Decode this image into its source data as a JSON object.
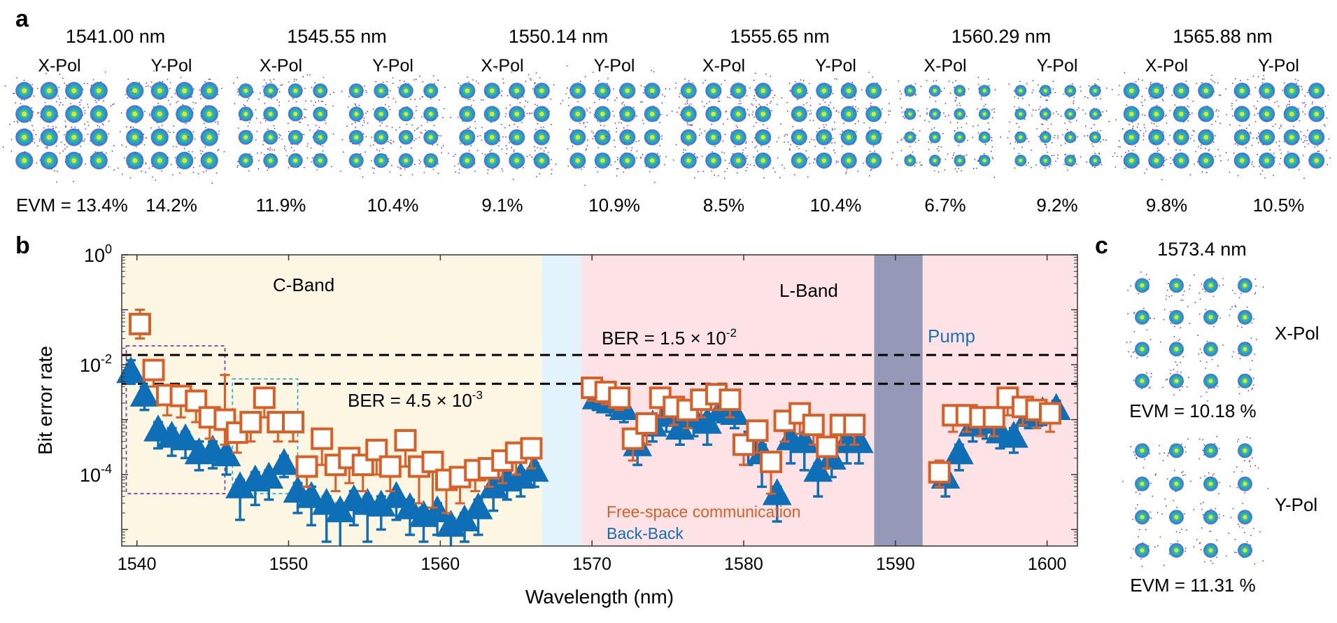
{
  "panel_labels": {
    "a": "a",
    "b": "b",
    "c": "c"
  },
  "panel_a": {
    "groups": [
      {
        "wavelength": "1541.00 nm",
        "x_label": "X-Pol",
        "y_label": "Y-Pol",
        "evm_x": "EVM = 13.4%",
        "evm_y": "14.2%"
      },
      {
        "wavelength": "1545.55 nm",
        "x_label": "X-Pol",
        "y_label": "Y-Pol",
        "evm_x": "11.9%",
        "evm_y": "10.4%"
      },
      {
        "wavelength": "1550.14 nm",
        "x_label": "X-Pol",
        "y_label": "Y-Pol",
        "evm_x": "9.1%",
        "evm_y": "10.9%"
      },
      {
        "wavelength": "1555.65 nm",
        "x_label": "X-Pol",
        "y_label": "Y-Pol",
        "evm_x": "8.5%",
        "evm_y": "10.4%"
      },
      {
        "wavelength": "1560.29 nm",
        "x_label": "X-Pol",
        "y_label": "Y-Pol",
        "evm_x": "6.7%",
        "evm_y": "9.2%"
      },
      {
        "wavelength": "1565.88 nm",
        "x_label": "X-Pol",
        "y_label": "Y-Pol",
        "evm_x": "9.8%",
        "evm_y": "10.5%"
      }
    ]
  },
  "panel_c": {
    "wavelength": "1573.4 nm",
    "x_label": "X-Pol",
    "y_label": "Y-Pol",
    "evm_x": "EVM = 10.18 %",
    "evm_y": "EVM = 11.31 %"
  },
  "colors": {
    "cband": "#fdf6e3",
    "gap": "#e3f3fb",
    "lband": "#fde3e6",
    "pump": "#9499b8",
    "bb": "#0f6fb6",
    "fso": "#d95f27",
    "threshold": "#000000",
    "box_purple": "#7b3fa8",
    "box_cyan": "#29b3d9",
    "pump_text": "#1d71b8"
  },
  "chart_data": {
    "type": "scatter",
    "xlabel": "Wavelength (nm)",
    "ylabel": "Bit error rate",
    "xlim": [
      1539,
      1602
    ],
    "ylim_log10": [
      -5.3,
      0
    ],
    "y_scale": "log",
    "xticks": [
      1540,
      1550,
      1560,
      1570,
      1580,
      1590,
      1600
    ],
    "xtick_labels": [
      "1540",
      "1550",
      "1560",
      "1570",
      "1580",
      "1590",
      "1600"
    ],
    "yticks": [
      {
        "exp": 0,
        "base": "10",
        "sup": "0"
      },
      {
        "exp": -2,
        "base": "10",
        "sup": "-2"
      },
      {
        "exp": -4,
        "base": "10",
        "sup": "-4"
      }
    ],
    "regions": [
      {
        "name": "C-Band",
        "from": 1539,
        "to": 1566.7,
        "color": "#fdf6e3"
      },
      {
        "name": "",
        "from": 1566.7,
        "to": 1569.3,
        "color": "#e3f3fb"
      },
      {
        "name": "L-Band",
        "from": 1569.3,
        "to": 1588.6,
        "color": "#fde3e6"
      },
      {
        "name": "Pump",
        "from": 1588.6,
        "to": 1591.8,
        "color": "#9499b8"
      },
      {
        "name": "",
        "from": 1591.8,
        "to": 1602,
        "color": "#fde3e6"
      }
    ],
    "region_labels": {
      "cband": "C-Band",
      "lband": "L-Band",
      "pump": "Pump"
    },
    "thresholds": [
      {
        "value": 0.015,
        "base": "BER = 1.5 × 10",
        "sup": "-2"
      },
      {
        "value": 0.0045,
        "base": "BER = 4.5 × 10",
        "sup": "-3"
      }
    ],
    "highlight_boxes": [
      {
        "x": [
          1539.3,
          1545.8
        ],
        "y": [
          4.5e-05,
          0.022
        ],
        "color": "#7b3fa8"
      },
      {
        "x": [
          1546.3,
          1550.6
        ],
        "y": [
          4.5e-05,
          0.0055
        ],
        "color": "#29b3d9"
      }
    ],
    "legend": {
      "position": "bottom-center",
      "fso_label": "Free-space communication",
      "bb_label": "Back-Back"
    },
    "series": [
      {
        "name": "Back-Back",
        "marker": "triangle",
        "x": [
          1539.6,
          1540.5,
          1541.4,
          1542.3,
          1543.2,
          1544.1,
          1545.0,
          1545.9,
          1546.8,
          1547.8,
          1548.7,
          1549.7,
          1550.6,
          1551.5,
          1552.5,
          1553.4,
          1554.3,
          1555.2,
          1556.1,
          1557.1,
          1558.0,
          1558.9,
          1559.8,
          1560.7,
          1561.6,
          1562.5,
          1563.5,
          1564.4,
          1565.3,
          1566.2,
          1570.3,
          1571.2,
          1572.1,
          1573.0,
          1574.0,
          1574.9,
          1575.8,
          1576.7,
          1577.6,
          1578.5,
          1579.4,
          1580.3,
          1581.2,
          1582.2,
          1583.1,
          1584.0,
          1584.9,
          1585.8,
          1586.8,
          1587.6,
          1593.3,
          1594.2,
          1595.1,
          1596.0,
          1596.9,
          1597.8,
          1598.8,
          1599.7,
          1600.6
        ],
        "y": [
          0.0075,
          0.0028,
          0.00065,
          0.0005,
          0.00045,
          0.00025,
          0.00028,
          0.00023,
          6e-05,
          8e-05,
          9e-05,
          0.00016,
          5e-05,
          4e-05,
          3e-05,
          2.2e-05,
          3.5e-05,
          3e-05,
          2.8e-05,
          4e-05,
          2.5e-05,
          1.8e-05,
          2.2e-05,
          1.2e-05,
          1.5e-05,
          2.5e-05,
          6e-05,
          8e-05,
          9e-05,
          0.00012,
          0.0025,
          0.0021,
          0.0016,
          0.00035,
          0.0008,
          0.0012,
          0.0007,
          0.0011,
          0.0009,
          0.0015,
          0.0013,
          0.0004,
          0.00025,
          4.5e-05,
          0.00045,
          0.0004,
          0.00012,
          0.0002,
          0.0004,
          0.0004,
          9e-05,
          0.00025,
          0.0008,
          0.0009,
          0.0006,
          0.0005,
          0.0012,
          0.0014,
          0.0016
        ],
        "err_up": [
          0.012,
          0.004,
          0.0009,
          0.0007,
          0.0006,
          0.0004,
          0.0004,
          0.0003,
          8e-05,
          0.00011,
          0.00012,
          0.00022,
          7e-05,
          6e-05,
          4e-05,
          3e-05,
          5e-05,
          4e-05,
          4e-05,
          5e-05,
          3.5e-05,
          2.5e-05,
          3e-05,
          1.6e-05,
          2e-05,
          3.5e-05,
          8e-05,
          0.00011,
          0.00012,
          0.00016,
          0.0035,
          0.003,
          0.0022,
          0.0005,
          0.0011,
          0.0016,
          0.001,
          0.0015,
          0.0012,
          0.002,
          0.0018,
          0.0006,
          0.00035,
          6e-05,
          0.0006,
          0.00055,
          0.00016,
          0.00028,
          0.00055,
          0.00055,
          0.00012,
          0.00035,
          0.0011,
          0.0012,
          0.0008,
          0.0007,
          0.0016,
          0.0019,
          0.0022
        ],
        "err_down": [
          0.0045,
          0.0015,
          0.0003,
          0.00022,
          0.0002,
          0.00012,
          0.00013,
          0.0001,
          1.5e-05,
          2.8e-05,
          3.5e-05,
          9e-05,
          2e-05,
          1.2e-05,
          6e-06,
          4.5e-06,
          1.2e-05,
          6e-06,
          1e-05,
          1.5e-05,
          8e-06,
          6e-06,
          8e-06,
          5e-06,
          6e-06,
          8e-06,
          2.2e-05,
          3.5e-05,
          4e-05,
          6e-05,
          0.0015,
          0.0012,
          0.0009,
          0.00015,
          0.0004,
          0.0006,
          0.00035,
          0.0005,
          0.00035,
          0.0009,
          0.0007,
          0.00015,
          6e-05,
          1.4e-05,
          0.00016,
          0.00012,
          4e-05,
          9e-05,
          0.00016,
          0.00016,
          4e-05,
          0.00012,
          0.0004,
          0.00045,
          0.0003,
          0.00025,
          0.0007,
          0.0008,
          0.0009
        ]
      },
      {
        "name": "Free-space communication",
        "marker": "square",
        "x": [
          1540.2,
          1541.1,
          1542.0,
          1542.9,
          1543.9,
          1544.8,
          1545.8,
          1546.6,
          1547.5,
          1548.4,
          1549.3,
          1550.3,
          1551.2,
          1552.2,
          1553.1,
          1554.0,
          1554.9,
          1555.8,
          1556.7,
          1557.7,
          1558.6,
          1559.5,
          1560.4,
          1561.3,
          1562.3,
          1563.2,
          1564.1,
          1565.0,
          1566.0,
          1570.0,
          1570.9,
          1571.8,
          1572.7,
          1573.6,
          1574.5,
          1575.4,
          1576.3,
          1577.2,
          1578.2,
          1579.1,
          1580.0,
          1580.9,
          1581.8,
          1582.7,
          1583.7,
          1584.6,
          1585.5,
          1586.4,
          1587.3,
          1592.9,
          1593.8,
          1594.7,
          1595.6,
          1596.5,
          1597.4,
          1598.4,
          1599.3,
          1600.2
        ],
        "y": [
          0.055,
          0.008,
          0.0028,
          0.0027,
          0.0022,
          0.0011,
          0.001,
          0.00058,
          0.0009,
          0.0025,
          0.0009,
          0.0009,
          0.00014,
          0.00045,
          0.00015,
          0.0002,
          0.00015,
          0.00028,
          0.00014,
          0.00042,
          0.00014,
          0.00017,
          8e-05,
          9e-05,
          0.00012,
          0.00013,
          0.00018,
          0.00025,
          0.0003,
          0.0038,
          0.0032,
          0.0025,
          0.00045,
          0.00085,
          0.0025,
          0.0017,
          0.0015,
          0.0023,
          0.0029,
          0.0023,
          0.00035,
          0.00063,
          0.00017,
          0.00095,
          0.0013,
          0.0008,
          0.00032,
          0.0008,
          0.0008,
          0.00011,
          0.0012,
          0.0012,
          0.0011,
          0.0011,
          0.0025,
          0.0017,
          0.0015,
          0.0013
        ],
        "err_up": [
          0.1,
          0.012,
          0.004,
          0.0038,
          0.0032,
          0.0016,
          0.0065,
          0.0008,
          0.0013,
          0.0035,
          0.0013,
          0.0012,
          0.0002,
          0.0006,
          0.0002,
          0.00028,
          0.00021,
          0.00038,
          0.0002,
          0.00055,
          0.0002,
          0.00024,
          0.00011,
          0.00013,
          0.00017,
          0.00018,
          0.00025,
          0.00034,
          0.00041,
          0.005,
          0.0044,
          0.0034,
          0.0006,
          0.0012,
          0.0034,
          0.0024,
          0.0021,
          0.0032,
          0.004,
          0.0032,
          0.0005,
          0.00085,
          0.00024,
          0.0013,
          0.0018,
          0.0011,
          0.00045,
          0.0011,
          0.0011,
          0.00018,
          0.0016,
          0.0016,
          0.0015,
          0.0015,
          0.0034,
          0.0023,
          0.002,
          0.0018
        ],
        "err_down": [
          0.03,
          0.004,
          0.0012,
          0.0011,
          0.0009,
          0.00045,
          0.00035,
          0.00025,
          0.0004,
          0.0011,
          0.0004,
          0.0004,
          6e-05,
          0.00015,
          5e-05,
          7e-05,
          5e-05,
          0.0001,
          5e-05,
          0.00014,
          3e-05,
          2.5e-05,
          2e-05,
          3e-05,
          5e-05,
          6e-05,
          7e-05,
          0.0001,
          0.00013,
          0.0022,
          0.0019,
          0.0015,
          0.00018,
          0.00035,
          0.0011,
          0.0008,
          0.0007,
          0.0011,
          0.0015,
          0.0011,
          0.00015,
          0.00025,
          4.5e-05,
          0.0004,
          0.00055,
          0.00035,
          0.00013,
          0.00035,
          0.00035,
          6e-05,
          0.0006,
          0.0006,
          0.0005,
          0.0005,
          0.0012,
          0.0008,
          0.0007,
          0.0006
        ]
      }
    ]
  }
}
